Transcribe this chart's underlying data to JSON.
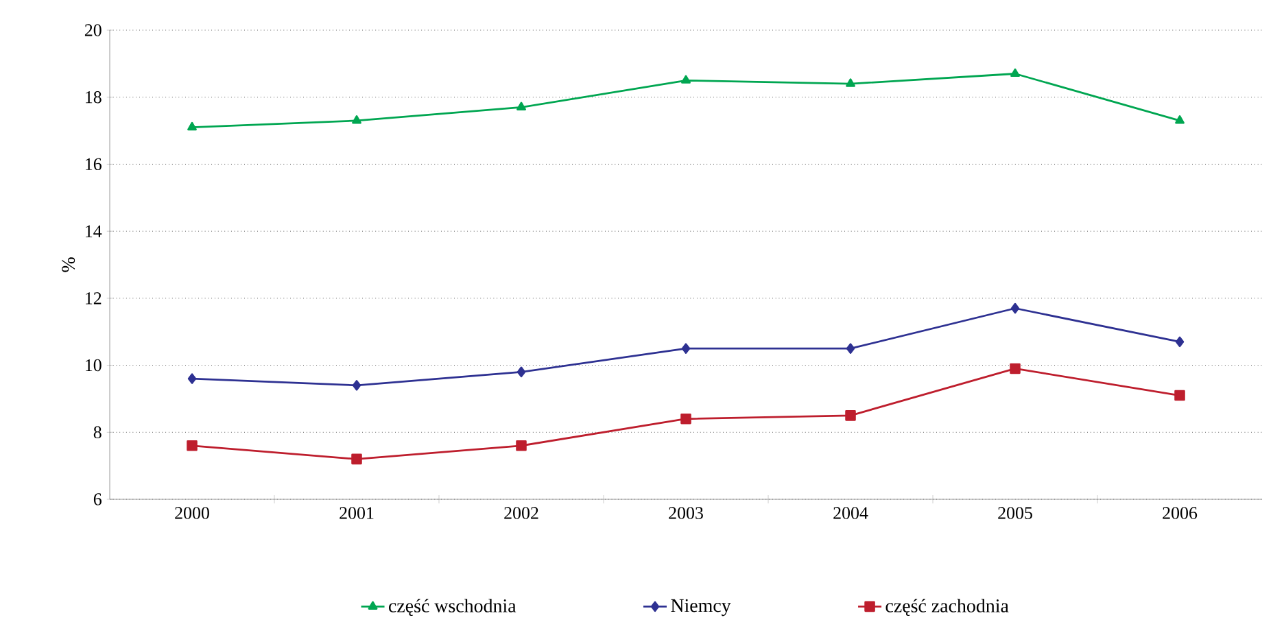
{
  "chart_data": {
    "type": "line",
    "ylabel": "%",
    "categories": [
      "2000",
      "2001",
      "2002",
      "2003",
      "2004",
      "2005",
      "2006"
    ],
    "ylim": [
      6,
      20
    ],
    "yticks": [
      6,
      8,
      10,
      12,
      14,
      16,
      18,
      20
    ],
    "grid": "y",
    "legend": "bottom",
    "line_style": "solid",
    "series": [
      {
        "name": "część wschodnia",
        "color": "#00a651",
        "marker": "triangle",
        "values": [
          17.1,
          17.3,
          17.7,
          18.5,
          18.4,
          18.7,
          17.3
        ]
      },
      {
        "name": "Niemcy",
        "color": "#2e3192",
        "marker": "diamond",
        "values": [
          9.6,
          9.4,
          9.8,
          10.5,
          10.5,
          11.7,
          10.7
        ]
      },
      {
        "name": "część zachodnia",
        "color": "#be1e2d",
        "marker": "square",
        "values": [
          7.6,
          7.2,
          7.6,
          8.4,
          8.5,
          9.9,
          9.1
        ]
      }
    ]
  }
}
